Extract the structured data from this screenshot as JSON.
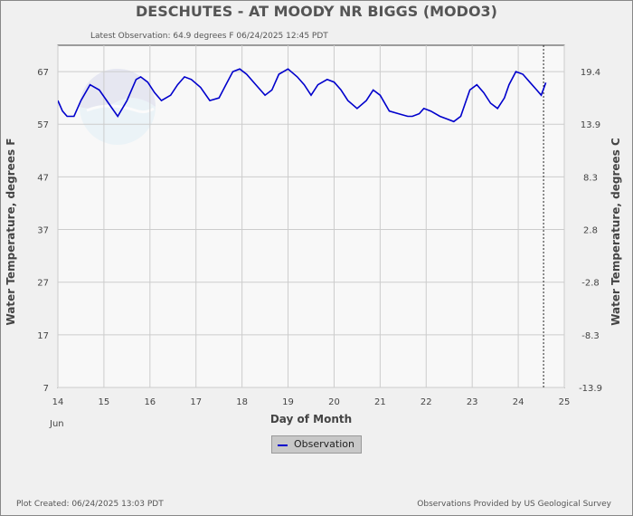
{
  "header": {
    "title": "DESCHUTES - AT MOODY NR BIGGS  (MODO3)",
    "latest_observation": "Latest Observation: 64.9 degrees F 06/24/2025 12:45 PDT"
  },
  "footer": {
    "plot_created": "Plot Created: 06/24/2025 13:03 PDT",
    "provider": "Observations Provided by US Geological Survey"
  },
  "legend": {
    "label": "Observation"
  },
  "colors": {
    "series": "#0000cc",
    "grid": "#cccccc",
    "plot_bg": "#ffffff"
  },
  "chart_data": {
    "type": "line",
    "xlabel": "Day of Month",
    "ylabel_left": "Water Temperature, degrees F",
    "ylabel_right": "Water Temperature, degrees C",
    "month_label": "Jun",
    "xlim": [
      14,
      25
    ],
    "ylim": [
      7,
      72
    ],
    "x_ticks": [
      "14",
      "15",
      "16",
      "17",
      "18",
      "19",
      "20",
      "21",
      "22",
      "23",
      "24",
      "25"
    ],
    "y_ticks_left": [
      "7",
      "17",
      "27",
      "37",
      "47",
      "57",
      "67"
    ],
    "y_ticks_right": [
      "-13.9",
      "-8.3",
      "-2.8",
      "2.8",
      "8.3",
      "13.9",
      "19.4"
    ],
    "latest_marker_x": 24.55,
    "series": [
      {
        "name": "Observation",
        "x": [
          14.0,
          14.1,
          14.2,
          14.35,
          14.5,
          14.7,
          14.9,
          15.1,
          15.3,
          15.5,
          15.7,
          15.8,
          15.95,
          16.1,
          16.25,
          16.45,
          16.6,
          16.75,
          16.9,
          17.1,
          17.3,
          17.5,
          17.65,
          17.8,
          17.95,
          18.1,
          18.3,
          18.5,
          18.65,
          18.8,
          19.0,
          19.2,
          19.35,
          19.5,
          19.65,
          19.85,
          20.0,
          20.15,
          20.3,
          20.5,
          20.7,
          20.85,
          21.0,
          21.2,
          21.4,
          21.6,
          21.7,
          21.85,
          21.95,
          22.1,
          22.3,
          22.45,
          22.6,
          22.75,
          22.85,
          22.95,
          23.1,
          23.25,
          23.4,
          23.55,
          23.7,
          23.8,
          23.95,
          24.1,
          24.25,
          24.4,
          24.5,
          24.6
        ],
        "y": [
          61.5,
          59.5,
          58.5,
          58.5,
          61.5,
          64.5,
          63.5,
          61,
          58.5,
          61.5,
          65.5,
          66,
          65,
          63,
          61.5,
          62.5,
          64.5,
          66,
          65.5,
          64,
          61.5,
          62,
          64.5,
          67,
          67.5,
          66.5,
          64.5,
          62.5,
          63.5,
          66.5,
          67.5,
          66,
          64.5,
          62.5,
          64.5,
          65.5,
          65,
          63.5,
          61.5,
          60,
          61.5,
          63.5,
          62.5,
          59.5,
          59,
          58.5,
          58.5,
          59,
          60,
          59.5,
          58.5,
          58,
          57.5,
          58.5,
          61,
          63.5,
          64.5,
          63,
          61,
          60,
          62,
          64.5,
          67,
          66.5,
          65,
          63.5,
          62.5,
          64.9
        ]
      }
    ]
  }
}
